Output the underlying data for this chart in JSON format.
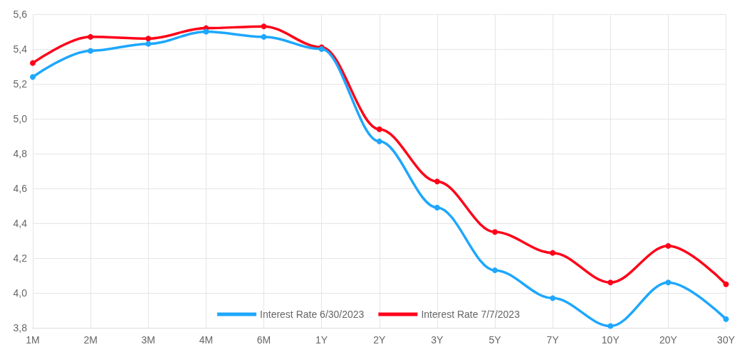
{
  "chart_data": {
    "type": "line",
    "categories": [
      "1M",
      "2M",
      "3M",
      "4M",
      "6M",
      "1Y",
      "2Y",
      "3Y",
      "5Y",
      "7Y",
      "10Y",
      "20Y",
      "30Y"
    ],
    "series": [
      {
        "name": "Interest Rate 6/30/2023",
        "color": "#1ea7fd",
        "values": [
          5.24,
          5.39,
          5.43,
          5.5,
          5.47,
          5.4,
          4.87,
          4.49,
          4.13,
          3.97,
          3.81,
          4.06,
          3.85
        ]
      },
      {
        "name": "Interest Rate 7/7/2023",
        "color": "#ff0019",
        "values": [
          5.32,
          5.47,
          5.46,
          5.52,
          5.53,
          5.41,
          4.94,
          4.64,
          4.35,
          4.23,
          4.06,
          4.27,
          4.05
        ]
      }
    ],
    "ylim": [
      3.8,
      5.6
    ],
    "yticks": [
      {
        "value": 3.8,
        "label": "3,8"
      },
      {
        "value": 4.0,
        "label": "4,0"
      },
      {
        "value": 4.2,
        "label": "4,2"
      },
      {
        "value": 4.4,
        "label": "4,4"
      },
      {
        "value": 4.6,
        "label": "4,6"
      },
      {
        "value": 4.8,
        "label": "4,8"
      },
      {
        "value": 5.0,
        "label": "5,0"
      },
      {
        "value": 5.2,
        "label": "5,2"
      },
      {
        "value": 5.4,
        "label": "5,4"
      },
      {
        "value": 5.6,
        "label": "5,6"
      }
    ],
    "grid": true,
    "legend": "bottom",
    "marker": "circle",
    "line_style": "solid"
  }
}
